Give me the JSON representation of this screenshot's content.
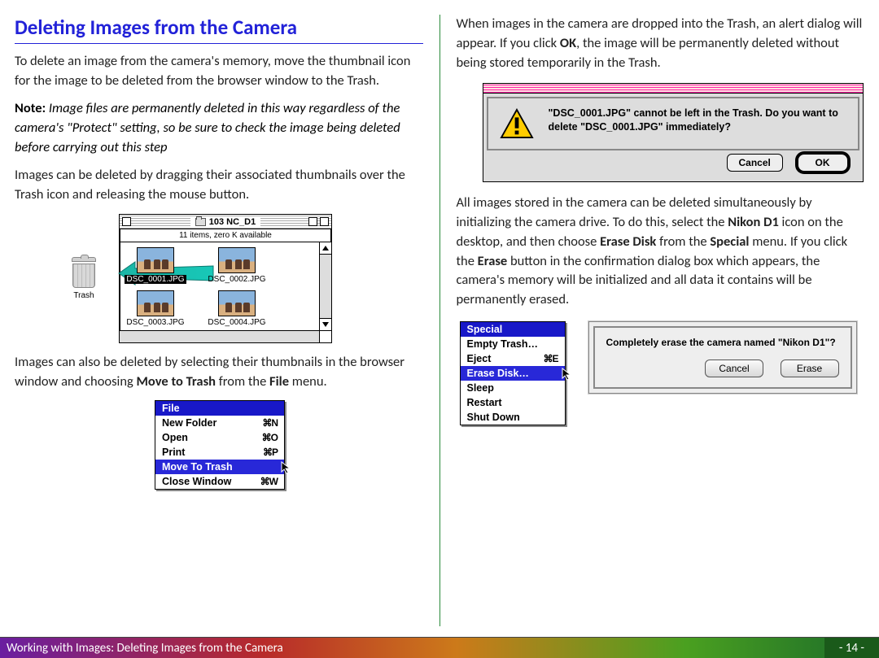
{
  "page": {
    "title": "Deleting Images from the Camera",
    "footer_trail": "Working with Images:  Deleting Images from the Camera",
    "footer_page": "- 14 -"
  },
  "left": {
    "para1": "To delete an image from the camera's memory, move the thumbnail icon for the image to be deleted from the browser window to the Trash.",
    "note_label": "Note:",
    "note_body": "  Image files are permanently deleted in this way regardless of the camera's \"Protect\" setting, so be sure to check the image being deleted before carrying out this step",
    "para2": "Images can be deleted by dragging their associated thumbnails over the Trash icon and releasing the mouse button.",
    "finder": {
      "title": "103 NC_D1",
      "info": "11 items, zero K available",
      "thumbs": [
        "DSC_0001.JPG",
        "DSC_0002.JPG",
        "DSC_0003.JPG",
        "DSC_0004.JPG"
      ],
      "selected_index": 0
    },
    "trash_label": "Trash",
    "para3_a": "Images can also be deleted by selecting their thumbnails in the browser window and choosing ",
    "para3_b": "Move to Trash",
    "para3_c": " from the ",
    "para3_d": "File",
    "para3_e": " menu.",
    "file_menu": {
      "title": "File",
      "items": [
        {
          "label": "New Folder",
          "short": "⌘N"
        },
        {
          "label": "Open",
          "short": "⌘O"
        },
        {
          "label": "Print",
          "short": "⌘P"
        },
        {
          "label": "Move To Trash",
          "short": ""
        },
        {
          "label": "Close Window",
          "short": "⌘W"
        }
      ],
      "selected": 3
    }
  },
  "right": {
    "para1_a": "When images in the camera are dropped into the Trash, an alert dialog will appear. If you click ",
    "para1_b": "OK",
    "para1_c": ", the image will be permanently deleted without being stored temporarily in the Trash.",
    "dialog": {
      "text": "\"DSC_0001.JPG\" cannot be left in the Trash.  Do you want to delete \"DSC_0001.JPG\" immediately?",
      "cancel": "Cancel",
      "ok": "OK"
    },
    "para2_a": "All images stored in the camera can be deleted simultaneously by initializing the camera drive. To do this, select the ",
    "para2_b": "Nikon D1",
    "para2_c": " icon on the desktop, and then choose ",
    "para2_d": "Erase Disk",
    "para2_e": " from the ",
    "para2_f": "Special",
    "para2_g": " menu. If you click the ",
    "para2_h": "Erase",
    "para2_i": " button in the confirmation dialog box which appears, the camera's memory will be initialized and all data it contains will be permanently erased.",
    "special_menu": {
      "title": "Special",
      "items": [
        {
          "label": "Empty Trash…",
          "short": ""
        },
        {
          "label": "Eject",
          "short": "⌘E"
        },
        {
          "label": "Erase Disk…",
          "short": ""
        },
        {
          "label": "Sleep",
          "short": ""
        },
        {
          "label": "Restart",
          "short": ""
        },
        {
          "label": "Shut Down",
          "short": ""
        }
      ],
      "selected": 2
    },
    "erase_dialog": {
      "text": "Completely erase the camera named \"Nikon D1\"?",
      "cancel": "Cancel",
      "erase": "Erase"
    }
  },
  "colors": {
    "heading": "#2222d8",
    "divider": "#2a8a3a",
    "menu_sel": "#2828d8",
    "drag_arrow": "#1ab5a5"
  }
}
